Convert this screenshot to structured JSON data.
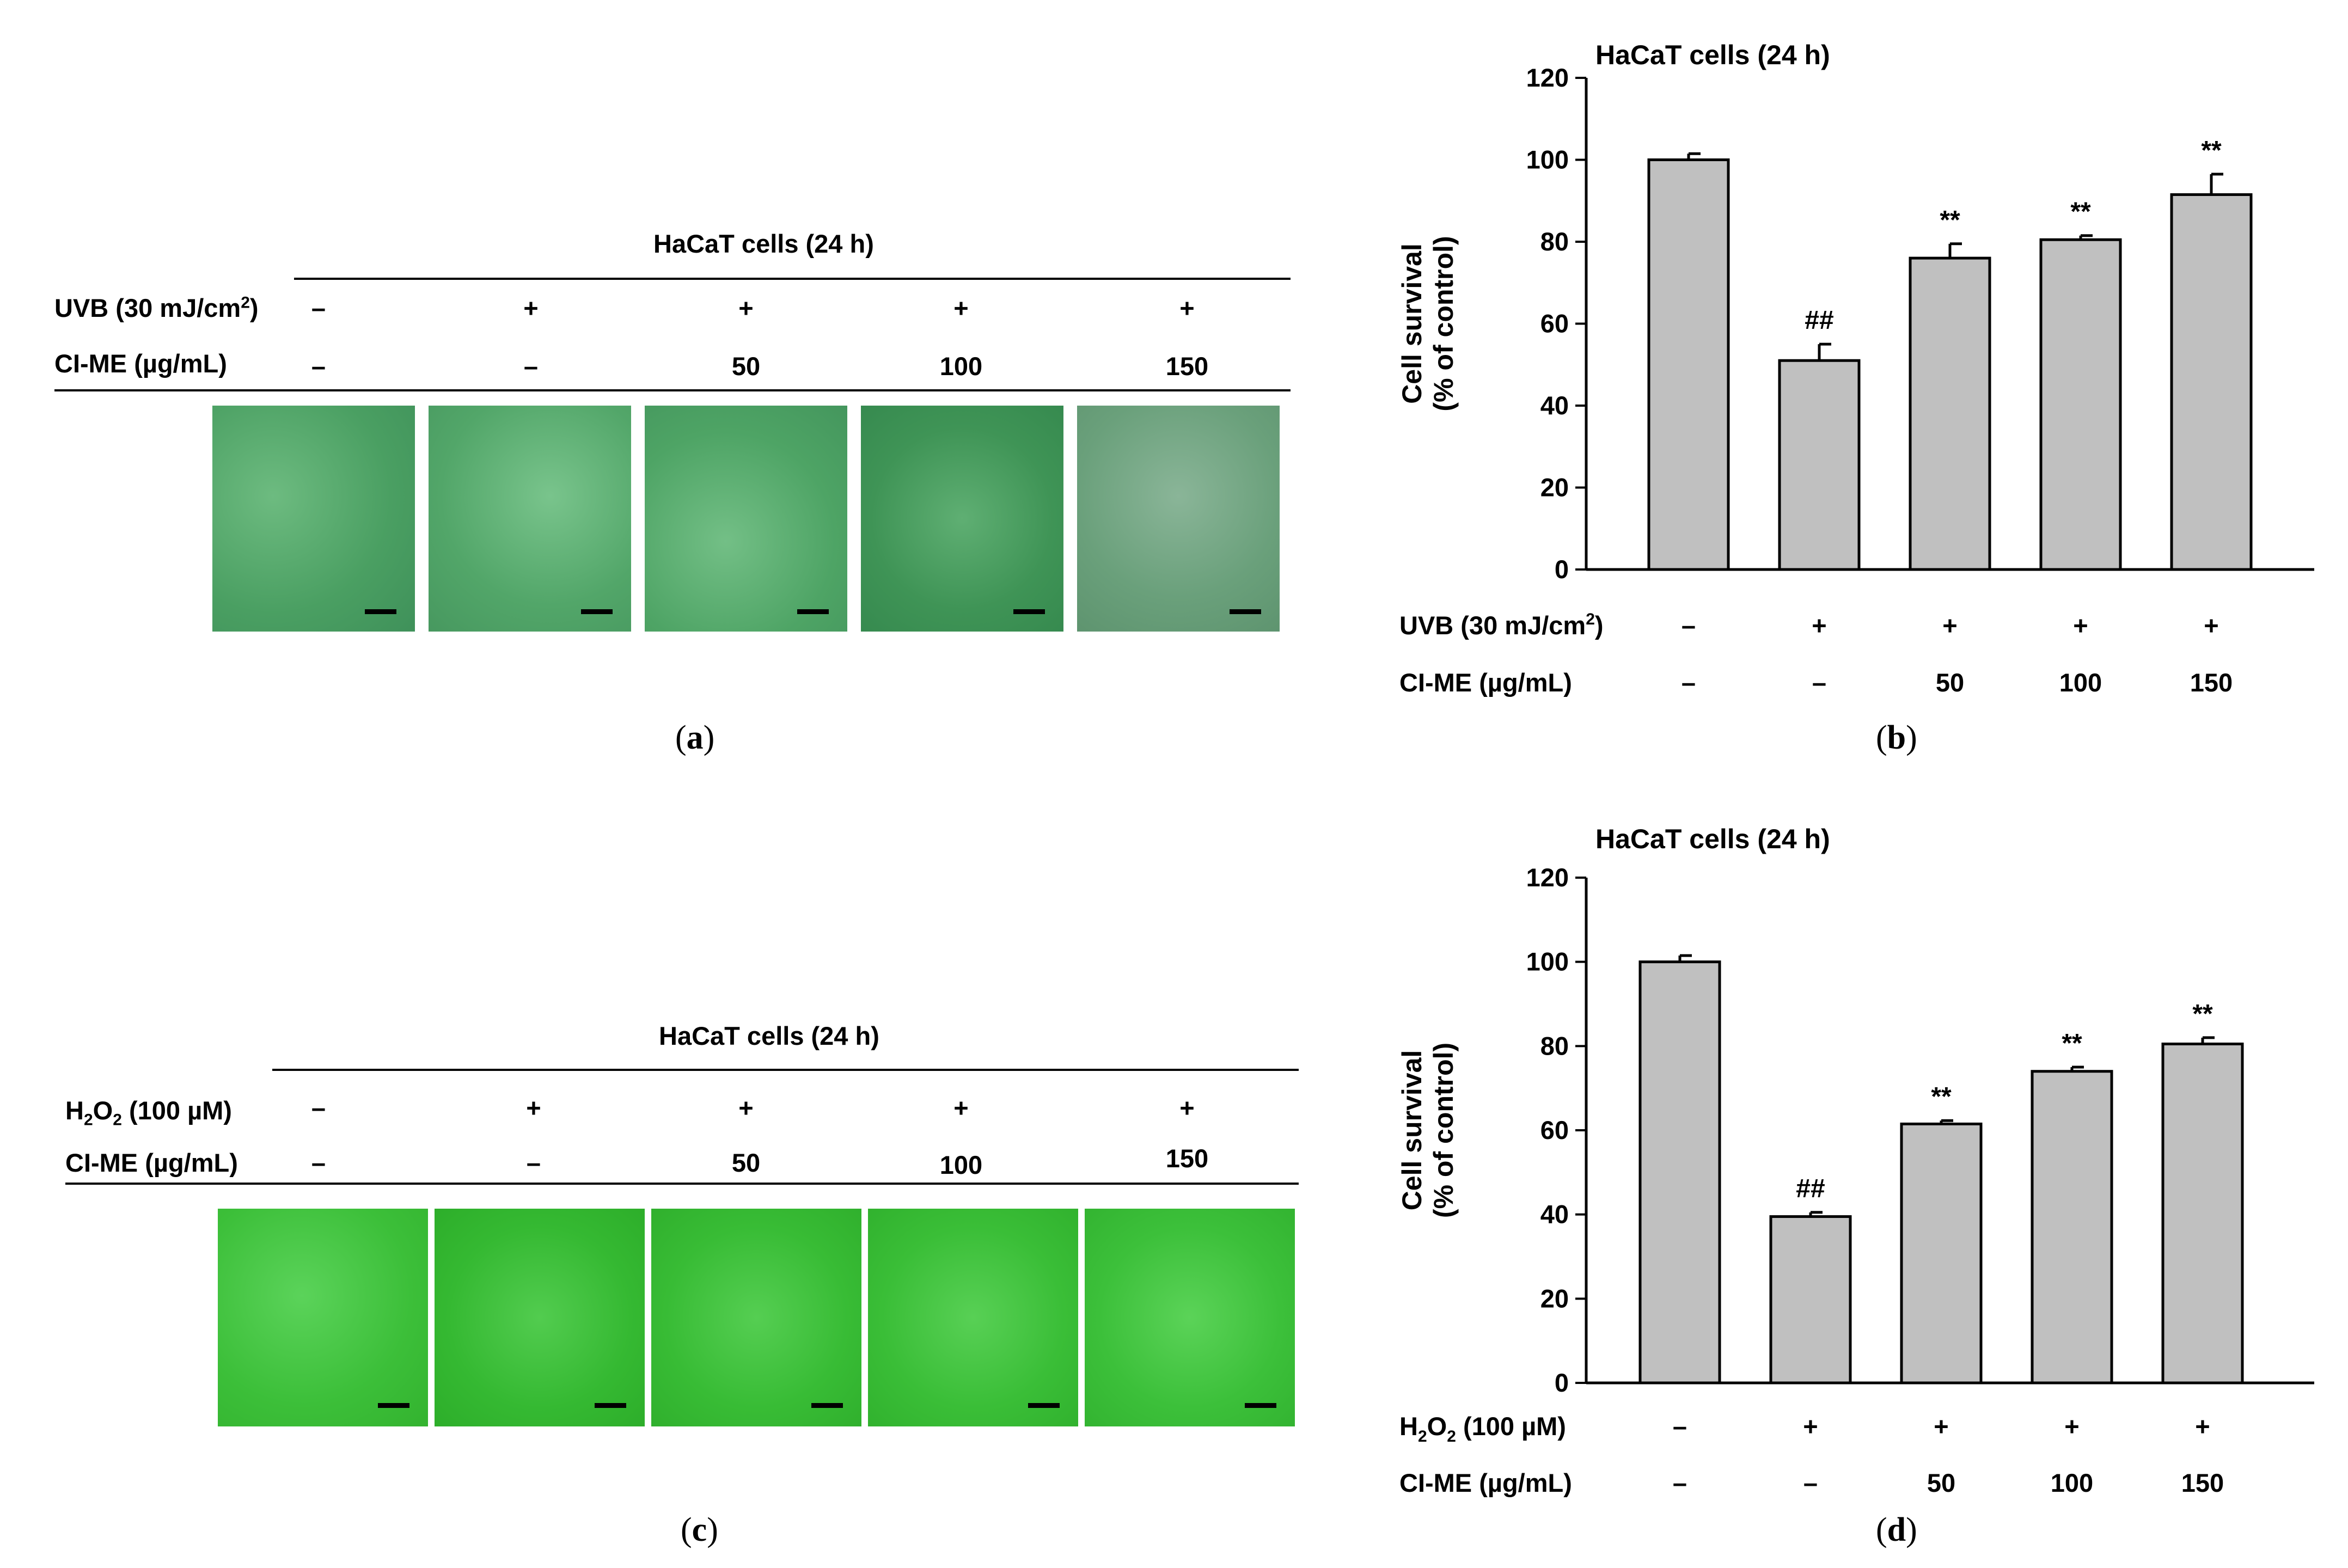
{
  "panel_a": {
    "title": "HaCaT cells (24 h)",
    "row1_label_main": "UVB (30 mJ/cm",
    "row1_label_sup": "2",
    "row1_label_end": ")",
    "row2_label": "CI-ME (µg/mL)",
    "row1_values": [
      "–",
      "+",
      "+",
      "+",
      "+"
    ],
    "row2_values": [
      "–",
      "–",
      "50",
      "100",
      "150"
    ],
    "caption_open": "(",
    "caption_letter": "a",
    "caption_close": ")"
  },
  "panel_c": {
    "title": "HaCaT cells (24 h)",
    "row1_label_pre": "H",
    "row1_label_sub1": "2",
    "row1_label_mid": "O",
    "row1_label_sub2": "2",
    "row1_label_end": " (100 µM)",
    "row2_label": "CI-ME (µg/mL)",
    "row1_values": [
      "–",
      "+",
      "+",
      "+",
      "+"
    ],
    "row2_values": [
      "–",
      "–",
      "50",
      "100",
      "150"
    ],
    "caption_open": "(",
    "caption_letter": "c",
    "caption_close": ")"
  },
  "caption_b": {
    "open": "(",
    "letter": "b",
    "close": ")"
  },
  "caption_d": {
    "open": "(",
    "letter": "d",
    "close": ")"
  },
  "colors": {
    "bar_fill": "#c0c0c0",
    "micro_a": "#4fa468",
    "micro_c": "#3ec23a"
  },
  "chart_data": [
    {
      "id": "b",
      "type": "bar",
      "title": "HaCaT cells (24 h)",
      "ylabel_line1": "Cell survival",
      "ylabel_line2": "(% of control)",
      "ylim": [
        0,
        120
      ],
      "yticks": [
        0,
        20,
        40,
        60,
        80,
        100,
        120
      ],
      "values": [
        100,
        51,
        76,
        80.5,
        91.5
      ],
      "errors": [
        1.5,
        4,
        3.5,
        1,
        5
      ],
      "annotations": [
        "",
        "##",
        "**",
        "**",
        "**"
      ],
      "row1_label_main": "UVB (30 mJ/cm",
      "row1_label_sup": "2",
      "row1_label_end": ")",
      "row1_values": [
        "–",
        "+",
        "+",
        "+",
        "+"
      ],
      "row2_label": "CI-ME (µg/mL)",
      "row2_values": [
        "–",
        "–",
        "50",
        "100",
        "150"
      ]
    },
    {
      "id": "d",
      "type": "bar",
      "title": "HaCaT cells (24 h)",
      "ylabel_line1": "Cell survival",
      "ylabel_line2": "(% of control)",
      "ylim": [
        0,
        120
      ],
      "yticks": [
        0,
        20,
        40,
        60,
        80,
        100,
        120
      ],
      "values": [
        100,
        39.5,
        61.5,
        74,
        80.5
      ],
      "errors": [
        1.5,
        1,
        0.8,
        1,
        1.5
      ],
      "annotations": [
        "",
        "##",
        "**",
        "**",
        "**"
      ],
      "row1_label_pre": "H",
      "row1_label_sub1": "2",
      "row1_label_mid": "O",
      "row1_label_sub2": "2",
      "row1_label_end": " (100 µM)",
      "row1_values": [
        "–",
        "+",
        "+",
        "+",
        "+"
      ],
      "row2_label": "CI-ME (µg/mL)",
      "row2_values": [
        "–",
        "–",
        "50",
        "100",
        "150"
      ]
    }
  ]
}
